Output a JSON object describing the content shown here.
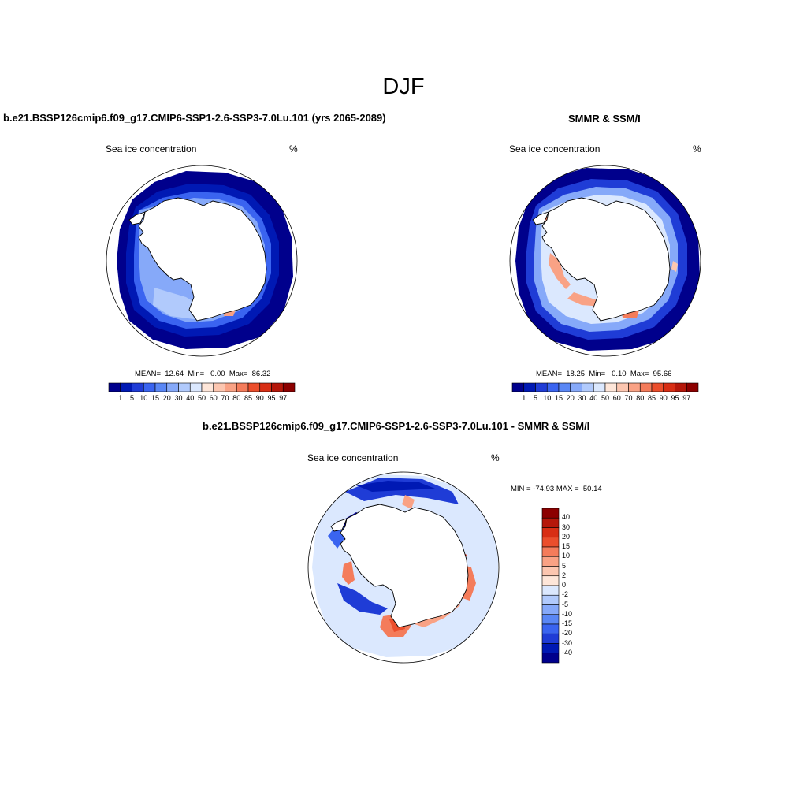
{
  "figure": {
    "title": "DJF"
  },
  "panels": [
    {
      "id": "model",
      "title": "b.e21.BSSP126cmip6.f09_g17.CMIP6-SSP1-2.6-SSP3-7.0Lu.101 (yrs 2065-2089)",
      "variable": "Sea ice concentration",
      "units": "%",
      "stats": "MEAN=  12.64  Min=   0.00  Max=  86.32"
    },
    {
      "id": "obs",
      "title": "SMMR & SSM/I",
      "variable": "Sea ice concentration",
      "units": "%",
      "stats": "MEAN=  18.25  Min=   0.10  Max=  95.66"
    },
    {
      "id": "diff",
      "title": "b.e21.BSSP126cmip6.f09_g17.CMIP6-SSP1-2.6-SSP3-7.0Lu.101 - SMMR & SSM/I",
      "variable": "Sea ice concentration",
      "units": "%",
      "stats": "MIN = -74.93 MAX =  50.14"
    }
  ],
  "colorbars": {
    "concentration": {
      "labels": [
        "1",
        "5",
        "10",
        "15",
        "20",
        "30",
        "40",
        "50",
        "60",
        "70",
        "80",
        "85",
        "90",
        "95",
        "97"
      ],
      "colors": [
        "#00008c",
        "#0019b4",
        "#1f3cd6",
        "#3a64f0",
        "#5a87f5",
        "#86a9f9",
        "#b1cafc",
        "#dbe8fe",
        "#fee6d9",
        "#fcc6b0",
        "#f9a285",
        "#f47c5b",
        "#eb4e2c",
        "#d82e14",
        "#b5170a",
        "#8c0000"
      ]
    },
    "difference": {
      "labels": [
        "40",
        "30",
        "20",
        "15",
        "10",
        "5",
        "2",
        "0",
        "-2",
        "-5",
        "-10",
        "-15",
        "-20",
        "-30",
        "-40"
      ],
      "colors": [
        "#8c0000",
        "#b5170a",
        "#d82e14",
        "#eb4e2c",
        "#f47c5b",
        "#f9a285",
        "#fcc6b0",
        "#fee6d9",
        "#dbe8fe",
        "#b1cafc",
        "#86a9f9",
        "#5a87f5",
        "#3a64f0",
        "#1f3cd6",
        "#0019b4",
        "#00008c"
      ]
    }
  }
}
